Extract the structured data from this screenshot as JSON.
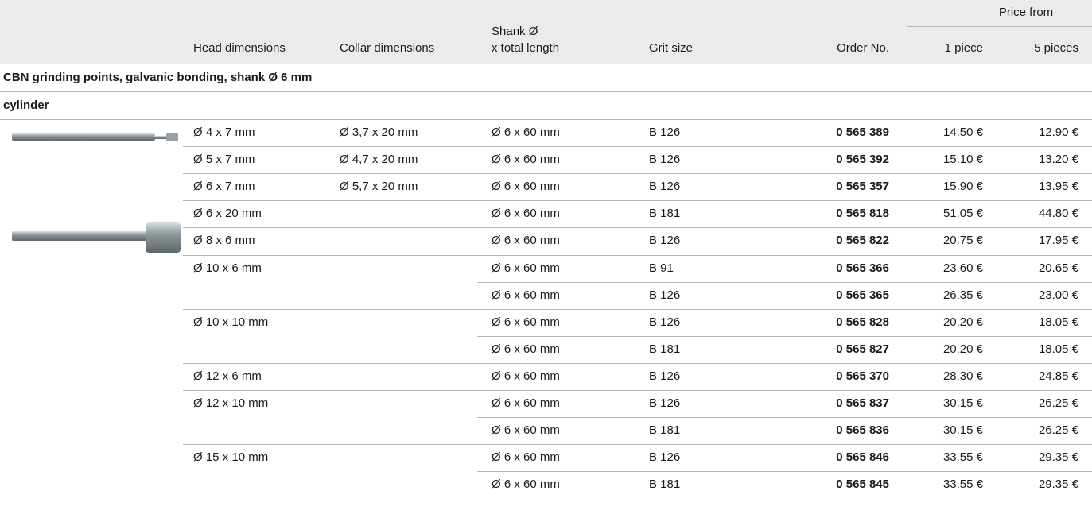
{
  "header": {
    "price_from": "Price from",
    "columns": [
      "Head dimensions",
      "Collar dimensions",
      [
        "Shank Ø",
        "x total length"
      ],
      "Grit size",
      "Order No.",
      "1 piece",
      "5 pieces"
    ]
  },
  "section": "CBN grinding points, galvanic bonding, shank Ø 6 mm",
  "subsection": "cylinder",
  "rows": [
    {
      "head": "Ø 4 x 7 mm",
      "collar": "Ø 3,7 x 20 mm",
      "shank": "Ø 6 x 60 mm",
      "grit": "B 126",
      "order": "0 565 389",
      "price1": "14.50 €",
      "price5": "12.90 €"
    },
    {
      "head": "Ø 5 x 7 mm",
      "collar": "Ø 4,7 x 20 mm",
      "shank": "Ø 6 x 60 mm",
      "grit": "B 126",
      "order": "0 565 392",
      "price1": "15.10 €",
      "price5": "13.20 €"
    },
    {
      "head": "Ø 6 x 7 mm",
      "collar": "Ø 5,7 x 20 mm",
      "shank": "Ø 6 x 60 mm",
      "grit": "B 126",
      "order": "0 565 357",
      "price1": "15.90 €",
      "price5": "13.95 €"
    },
    {
      "head": "Ø 6 x 20 mm",
      "shank": "Ø 6 x 60 mm",
      "grit": "B 181",
      "order": "0 565 818",
      "price1": "51.05 €",
      "price5": "44.80 €"
    },
    {
      "head": "Ø 8 x 6 mm",
      "shank": "Ø 6 x 60 mm",
      "grit": "B 126",
      "order": "0 565 822",
      "price1": "20.75 €",
      "price5": "17.95 €"
    },
    {
      "head": "Ø 10 x 6 mm",
      "shank": "Ø 6 x 60 mm",
      "grit": "B 91",
      "order": "0 565 366",
      "price1": "23.60 €",
      "price5": "20.65 €"
    },
    {
      "shank": "Ø 6 x 60 mm",
      "grit": "B 126",
      "order": "0 565 365",
      "price1": "26.35 €",
      "price5": "23.00 €"
    },
    {
      "head": "Ø 10 x 10 mm",
      "shank": "Ø 6 x 60 mm",
      "grit": "B 126",
      "order": "0 565 828",
      "price1": "20.20 €",
      "price5": "18.05 €"
    },
    {
      "shank": "Ø 6 x 60 mm",
      "grit": "B 181",
      "order": "0 565 827",
      "price1": "20.20 €",
      "price5": "18.05 €"
    },
    {
      "head": "Ø 12 x 6 mm",
      "shank": "Ø 6 x 60 mm",
      "grit": "B 126",
      "order": "0 565 370",
      "price1": "28.30 €",
      "price5": "24.85 €"
    },
    {
      "head": "Ø 12 x 10 mm",
      "shank": "Ø 6 x 60 mm",
      "grit": "B 126",
      "order": "0 565 837",
      "price1": "30.15 €",
      "price5": "26.25 €"
    },
    {
      "shank": "Ø 6 x 60 mm",
      "grit": "B 181",
      "order": "0 565 836",
      "price1": "30.15 €",
      "price5": "26.25 €"
    },
    {
      "head": "Ø 15 x 10 mm",
      "shank": "Ø 6 x 60 mm",
      "grit": "B 126",
      "order": "0 565 846",
      "price1": "33.55 €",
      "price5": "29.35 €"
    },
    {
      "shank": "Ø 6 x 60 mm",
      "grit": "B 181",
      "order": "0 565 845",
      "price1": "33.55 €",
      "price5": "29.35 €"
    }
  ]
}
